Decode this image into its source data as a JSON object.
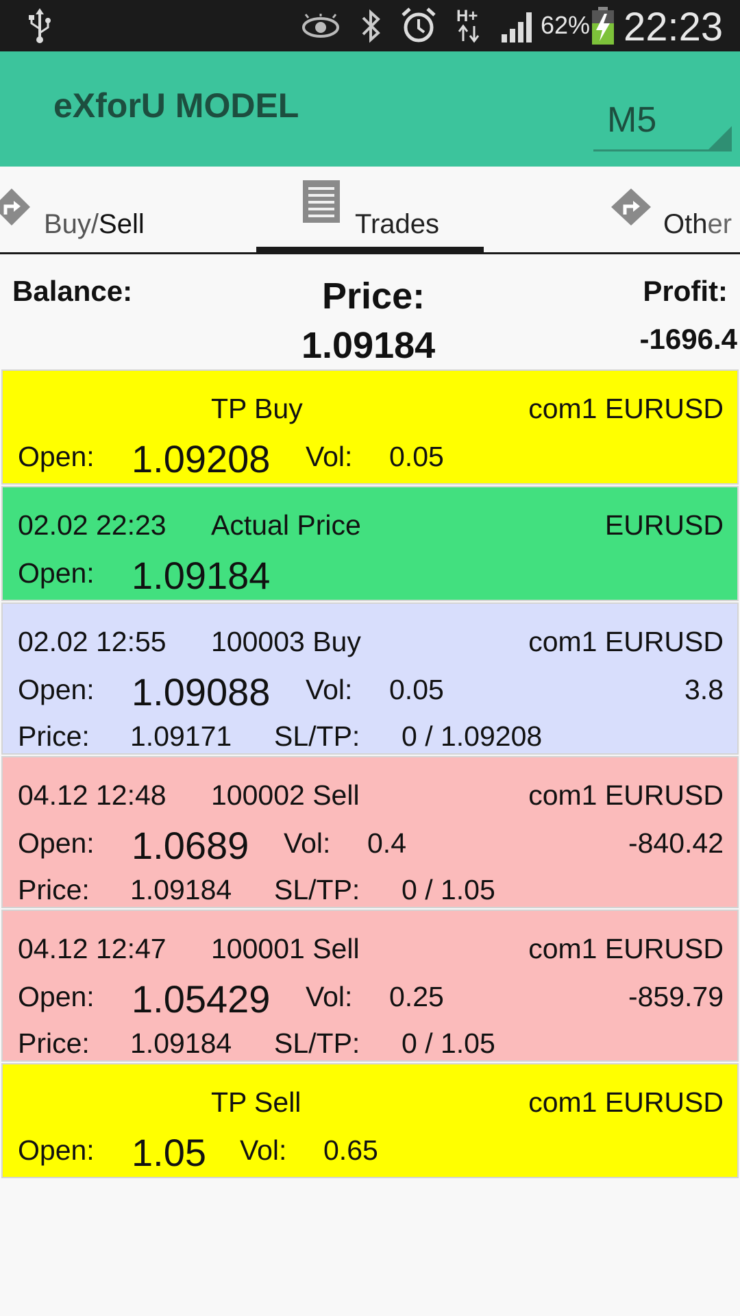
{
  "status_bar": {
    "battery_percent": "62%",
    "time": "22:23",
    "network_label": "H+",
    "icons": [
      "usb-icon",
      "eye-icon",
      "bluetooth-icon",
      "alarm-icon",
      "network-hplus-icon",
      "signal-icon",
      "battery-charging-icon"
    ]
  },
  "app_bar": {
    "title": "eXforU MODEL",
    "timeframe": "M5"
  },
  "tabs": [
    {
      "label_a": "Buy/",
      "label_b": "Sell",
      "icon": "turn-right-diamond-icon",
      "selected": false
    },
    {
      "label": "Trades",
      "icon": "list-document-icon",
      "selected": true
    },
    {
      "label_a": "Oth",
      "label_b": "er",
      "icon": "turn-right-diamond-icon",
      "selected": false
    }
  ],
  "summary": {
    "balance_label": "Balance:",
    "price_label": "Price:",
    "price_value": "1.09184",
    "profit_label": "Profit:",
    "profit_value": "-1696.4"
  },
  "labels": {
    "open": "Open:",
    "vol": "Vol:",
    "price": "Price:",
    "sltp": "SL/TP:"
  },
  "trades": [
    {
      "kind": "tp",
      "color": "#ffff00",
      "title": "TP Buy",
      "symbol": "com1 EURUSD",
      "open": "1.09208",
      "vol": "0.05"
    },
    {
      "kind": "actual",
      "color": "#42e07f",
      "time": "02.02 22:23",
      "title": "Actual Price",
      "symbol": "EURUSD",
      "open": "1.09184"
    },
    {
      "kind": "position",
      "color": "#d8defc",
      "time": "02.02 12:55",
      "title": "100003 Buy",
      "symbol": "com1 EURUSD",
      "open": "1.09088",
      "vol": "0.05",
      "profit": "3.8",
      "price": "1.09171",
      "sltp": "0 / 1.09208"
    },
    {
      "kind": "position",
      "color": "#fbbbbb",
      "time": "04.12 12:48",
      "title": "100002 Sell",
      "symbol": "com1 EURUSD",
      "open": "1.0689",
      "vol": "0.4",
      "profit": "-840.42",
      "price": "1.09184",
      "sltp": "0 / 1.05"
    },
    {
      "kind": "position",
      "color": "#fbbbbb",
      "time": "04.12 12:47",
      "title": "100001 Sell",
      "symbol": "com1 EURUSD",
      "open": "1.05429",
      "vol": "0.25",
      "profit": "-859.79",
      "price": "1.09184",
      "sltp": "0 / 1.05"
    },
    {
      "kind": "tp",
      "color": "#ffff00",
      "title": "TP Sell",
      "symbol": "com1 EURUSD",
      "open": "1.05",
      "vol": "0.65"
    }
  ]
}
